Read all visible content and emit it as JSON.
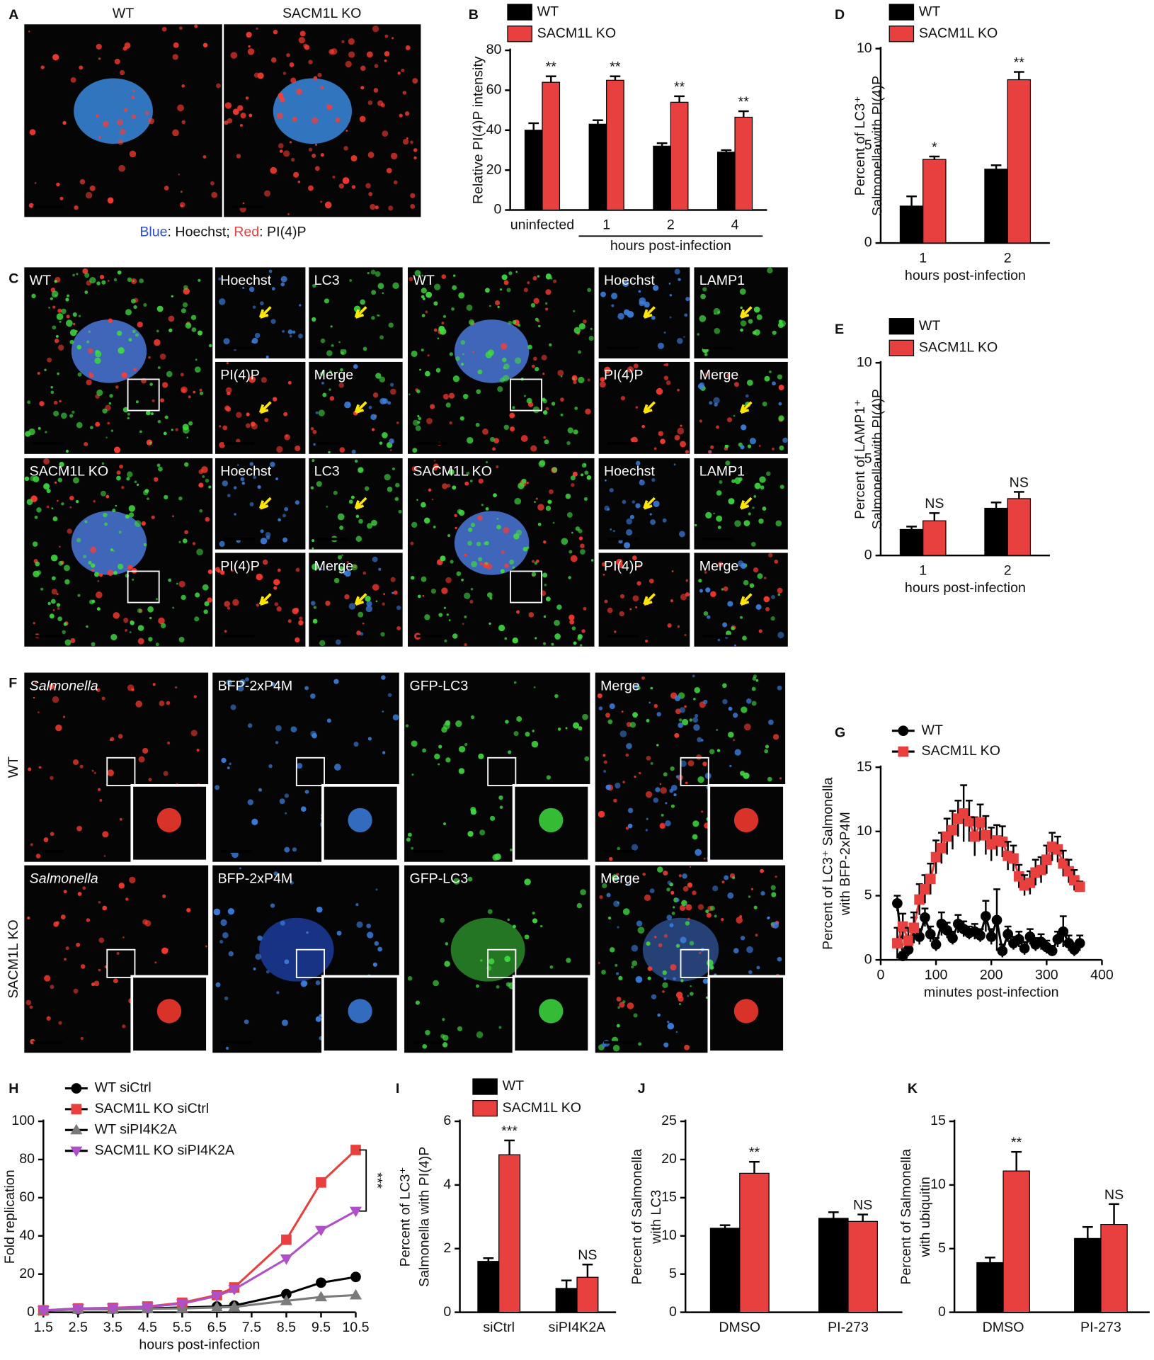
{
  "figure": {
    "letters": [
      "A",
      "B",
      "C",
      "D",
      "E",
      "F",
      "G",
      "H",
      "I",
      "J",
      "K"
    ],
    "a_labels": [
      "WT",
      "SACM1L KO"
    ],
    "a_caption": [
      "Blue",
      ": Hoechst; ",
      "Red",
      ": PI(4)P"
    ],
    "c_labels": [
      "WT",
      "Hoechst",
      "LC3",
      "PI(4)P",
      "Merge",
      "SACM1L KO",
      "Hoechst",
      "LC3",
      "PI(4)P",
      "Merge",
      "WT",
      "Hoechst",
      "LAMP1",
      "PI(4)P",
      "Merge",
      "SACM1L KO",
      "Hoechst",
      "LAMP1",
      "PI(4)P",
      "Merge"
    ],
    "f_labels": [
      "Salmonella",
      "BFP-2xP4M",
      "GFP-LC3",
      "Merge",
      "Salmonella",
      "BFP-2xP4M",
      "GFP-LC3",
      "Merge"
    ],
    "f_rows": [
      "WT",
      "SACM1L KO"
    ]
  },
  "chart_data": [
    {
      "type": "bar",
      "ylabel": [
        "Relative PI(4)P intensity"
      ],
      "categories": [
        "uninfected",
        "1",
        "2",
        "4"
      ],
      "xlabel": "hours post-infection",
      "series": [
        {
          "name": "WT",
          "color": "#000000",
          "values": [
            40,
            43,
            32,
            29
          ],
          "errors": [
            3.5,
            2,
            1.5,
            1
          ]
        },
        {
          "name": "SACM1L KO",
          "color": "#e8403e",
          "values": [
            64,
            65,
            54,
            46.5
          ],
          "errors": [
            3,
            2,
            3,
            3
          ],
          "significance": [
            "**",
            "**",
            "**",
            "**"
          ]
        }
      ],
      "ylim": [
        0,
        80
      ],
      "yticks": [
        0,
        20,
        40,
        60,
        80
      ],
      "legend": "top-left"
    },
    {
      "type": "bar",
      "ylabel": [
        "Percent of LC3⁺",
        "Salmonella with PI(4)P"
      ],
      "categories": [
        "1",
        "2"
      ],
      "xlabel": "hours post-infection",
      "series": [
        {
          "name": "WT",
          "color": "#000000",
          "values": [
            1.9,
            3.8
          ],
          "errors": [
            0.5,
            0.2
          ]
        },
        {
          "name": "SACM1L KO",
          "color": "#e8403e",
          "values": [
            4.3,
            8.4
          ],
          "errors": [
            0.15,
            0.4
          ],
          "significance": [
            "*",
            "**"
          ]
        }
      ],
      "ylim": [
        0,
        10
      ],
      "yticks": [
        0,
        5,
        10
      ],
      "legend": "top-left"
    },
    {
      "type": "bar",
      "ylabel": [
        "Percent of LAMP1⁺",
        "Salmonella with PI(4)P"
      ],
      "categories": [
        "1",
        "2"
      ],
      "xlabel": "hours post-infection",
      "series": [
        {
          "name": "WT",
          "color": "#000000",
          "values": [
            1.35,
            2.45
          ],
          "errors": [
            0.15,
            0.3
          ]
        },
        {
          "name": "SACM1L KO",
          "color": "#e8403e",
          "values": [
            1.8,
            2.95
          ],
          "errors": [
            0.4,
            0.35
          ],
          "significance": [
            "NS",
            "NS"
          ]
        }
      ],
      "ylim": [
        0,
        10
      ],
      "yticks": [
        0,
        5,
        10
      ],
      "legend": "top-left"
    },
    {
      "type": "line",
      "ylabel": [
        "Percent of LC3⁺ Salmonella",
        "with BFP-2xP4M"
      ],
      "xlabel": "minutes post-infection",
      "x": [
        30,
        40,
        50,
        60,
        70,
        80,
        90,
        100,
        110,
        120,
        130,
        140,
        150,
        160,
        170,
        180,
        190,
        200,
        210,
        220,
        230,
        240,
        250,
        260,
        270,
        280,
        290,
        300,
        310,
        320,
        330,
        340,
        350,
        360
      ],
      "series": [
        {
          "name": "WT",
          "color": "#000000",
          "marker": "circle",
          "values": [
            4.4,
            0.3,
            0.8,
            2.5,
            1.8,
            3.3,
            2.0,
            1.2,
            2.8,
            2.3,
            1.7,
            2.8,
            2.4,
            2.1,
            2.2,
            1.9,
            3.4,
            1.8,
            3.1,
            0.7,
            2.0,
            1.3,
            1.6,
            0.9,
            1.8,
            1.2,
            1.4,
            1.0,
            0.7,
            1.6,
            2.2,
            1.3,
            0.8,
            1.3
          ],
          "errors": [
            0.6,
            0.3,
            0.5,
            0.8,
            0.6,
            0.7,
            0.6,
            0.5,
            0.9,
            0.6,
            0.5,
            0.7,
            0.6,
            0.5,
            0.6,
            0.5,
            1.2,
            0.6,
            2.4,
            0.5,
            0.6,
            0.5,
            0.6,
            0.5,
            0.6,
            0.5,
            0.6,
            0.5,
            0.4,
            0.6,
            1.2,
            0.6,
            0.5,
            0.6
          ]
        },
        {
          "name": "SACM1L KO",
          "color": "#e8403e",
          "marker": "square",
          "values": [
            1.3,
            2.6,
            1.5,
            2.5,
            4.7,
            5.5,
            6.3,
            8.0,
            8.7,
            9.6,
            10.1,
            11.0,
            11.4,
            10.8,
            9.6,
            10.7,
            9.7,
            9.0,
            9.3,
            9.2,
            8.1,
            7.9,
            6.5,
            5.8,
            6.0,
            6.8,
            7.0,
            7.8,
            8.8,
            8.6,
            7.5,
            6.9,
            6.2,
            5.7
          ],
          "errors": [
            1.2,
            1.0,
            1.0,
            1.2,
            1.2,
            1.1,
            1.2,
            1.3,
            1.2,
            1.4,
            1.5,
            1.4,
            2.2,
            1.6,
            1.5,
            1.4,
            1.5,
            1.3,
            1.2,
            1.2,
            1.1,
            1.0,
            0.9,
            0.8,
            0.9,
            1.0,
            1.0,
            1.1,
            1.1,
            1.0,
            1.0,
            0.9,
            0.8,
            0.4
          ]
        }
      ],
      "xlim": [
        0,
        400
      ],
      "xticks": [
        0,
        100,
        200,
        300,
        400
      ],
      "ylim": [
        0,
        15
      ],
      "yticks": [
        0,
        5,
        10,
        15
      ],
      "legend": "top-left"
    },
    {
      "type": "line",
      "ylabel": [
        "Fold replication"
      ],
      "xlabel": "hours post-infection",
      "x": [
        1.5,
        2.5,
        3.5,
        4.5,
        5.5,
        6.5,
        7,
        8.5,
        9.5,
        10.5
      ],
      "series": [
        {
          "name": "WT siCtrl",
          "color": "#000000",
          "marker": "circle",
          "values": [
            1,
            1.5,
            1.8,
            2,
            2.5,
            3,
            3.5,
            9.5,
            15.5,
            18.5
          ]
        },
        {
          "name": "SACM1L KO siCtrl",
          "color": "#e8403e",
          "marker": "square",
          "values": [
            1,
            2,
            2.3,
            3,
            5,
            9,
            13,
            38,
            68,
            85
          ]
        },
        {
          "name": "WT siPI4K2A",
          "color": "#7a7a7a",
          "marker": "triangle-up",
          "values": [
            1,
            1.5,
            1.5,
            1.8,
            2,
            2.5,
            2.8,
            6,
            8,
            9
          ]
        },
        {
          "name": "SACM1L KO siPI4K2A",
          "color": "#b050c8",
          "marker": "triangle-down",
          "values": [
            1,
            2,
            2.2,
            2.8,
            4.5,
            8.5,
            12,
            28,
            43,
            53
          ]
        }
      ],
      "xlim": [
        1.5,
        10.5
      ],
      "xticks": [
        1.5,
        2.5,
        3.5,
        4.5,
        5.5,
        6.5,
        7.5,
        8.5,
        9.5,
        10.5
      ],
      "ylim": [
        0,
        100
      ],
      "yticks": [
        0,
        20,
        40,
        60,
        80,
        100
      ],
      "legend": "top-left",
      "annotation": "***"
    },
    {
      "type": "bar",
      "ylabel": [
        "Percent of LC3⁺",
        "Salmonella with PI(4)P"
      ],
      "categories": [
        "siCtrl",
        "siPI4K2A"
      ],
      "series": [
        {
          "name": "WT",
          "color": "#000000",
          "values": [
            1.6,
            0.75
          ],
          "errors": [
            0.1,
            0.25
          ]
        },
        {
          "name": "SACM1L KO",
          "color": "#e8403e",
          "values": [
            4.95,
            1.1
          ],
          "errors": [
            0.45,
            0.4
          ],
          "significance": [
            "***",
            "NS"
          ]
        }
      ],
      "ylim": [
        0,
        6
      ],
      "yticks": [
        0,
        2,
        4,
        6
      ],
      "legend": "top-left"
    },
    {
      "type": "bar",
      "ylabel": [
        "Percent of Salmonella",
        "with LC3"
      ],
      "categories": [
        "DMSO",
        "PI-273"
      ],
      "series": [
        {
          "name": "WT",
          "color": "#000000",
          "values": [
            11,
            12.3
          ],
          "errors": [
            0.4,
            0.8
          ]
        },
        {
          "name": "SACM1L KO",
          "color": "#e8403e",
          "values": [
            18.2,
            11.9
          ],
          "errors": [
            1.5,
            0.9
          ],
          "significance": [
            "**",
            "NS"
          ]
        }
      ],
      "ylim": [
        0,
        25
      ],
      "yticks": [
        0,
        5,
        10,
        15,
        20,
        25
      ]
    },
    {
      "type": "bar",
      "ylabel": [
        "Percent of Salmonella",
        "with ubiquitin"
      ],
      "categories": [
        "DMSO",
        "PI-273"
      ],
      "series": [
        {
          "name": "WT",
          "color": "#000000",
          "values": [
            3.9,
            5.8
          ],
          "errors": [
            0.4,
            0.9
          ]
        },
        {
          "name": "SACM1L KO",
          "color": "#e8403e",
          "values": [
            11.1,
            6.9
          ],
          "errors": [
            1.5,
            1.6
          ],
          "significance": [
            "**",
            "NS"
          ]
        }
      ],
      "ylim": [
        0,
        15
      ],
      "yticks": [
        0,
        5,
        10,
        15
      ]
    }
  ]
}
